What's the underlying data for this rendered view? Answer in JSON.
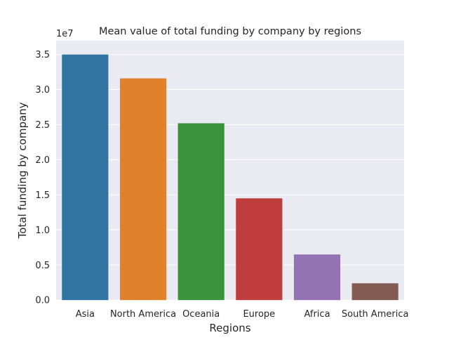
{
  "chart_data": {
    "type": "bar",
    "title": "Mean value of total funding by company by regions",
    "xlabel": "Regions",
    "ylabel": "Total funding by company",
    "y_multiplier": "1e7",
    "ylim": [
      0,
      3.7
    ],
    "y_ticks": [
      "0.0",
      "0.5",
      "1.0",
      "1.5",
      "2.0",
      "2.5",
      "3.0",
      "3.5"
    ],
    "y_tick_values": [
      0,
      0.5,
      1.0,
      1.5,
      2.0,
      2.5,
      3.0,
      3.5
    ],
    "categories": [
      "Asia",
      "North America",
      "Oceania",
      "Europe",
      "Africa",
      "South America"
    ],
    "values": [
      3.5,
      3.16,
      2.52,
      1.45,
      0.65,
      0.24
    ],
    "colors": [
      "#3274a1",
      "#e1812c",
      "#3a923a",
      "#c03d3e",
      "#9372b2",
      "#845b53"
    ],
    "grid": true,
    "background": "#eaeaf2"
  }
}
